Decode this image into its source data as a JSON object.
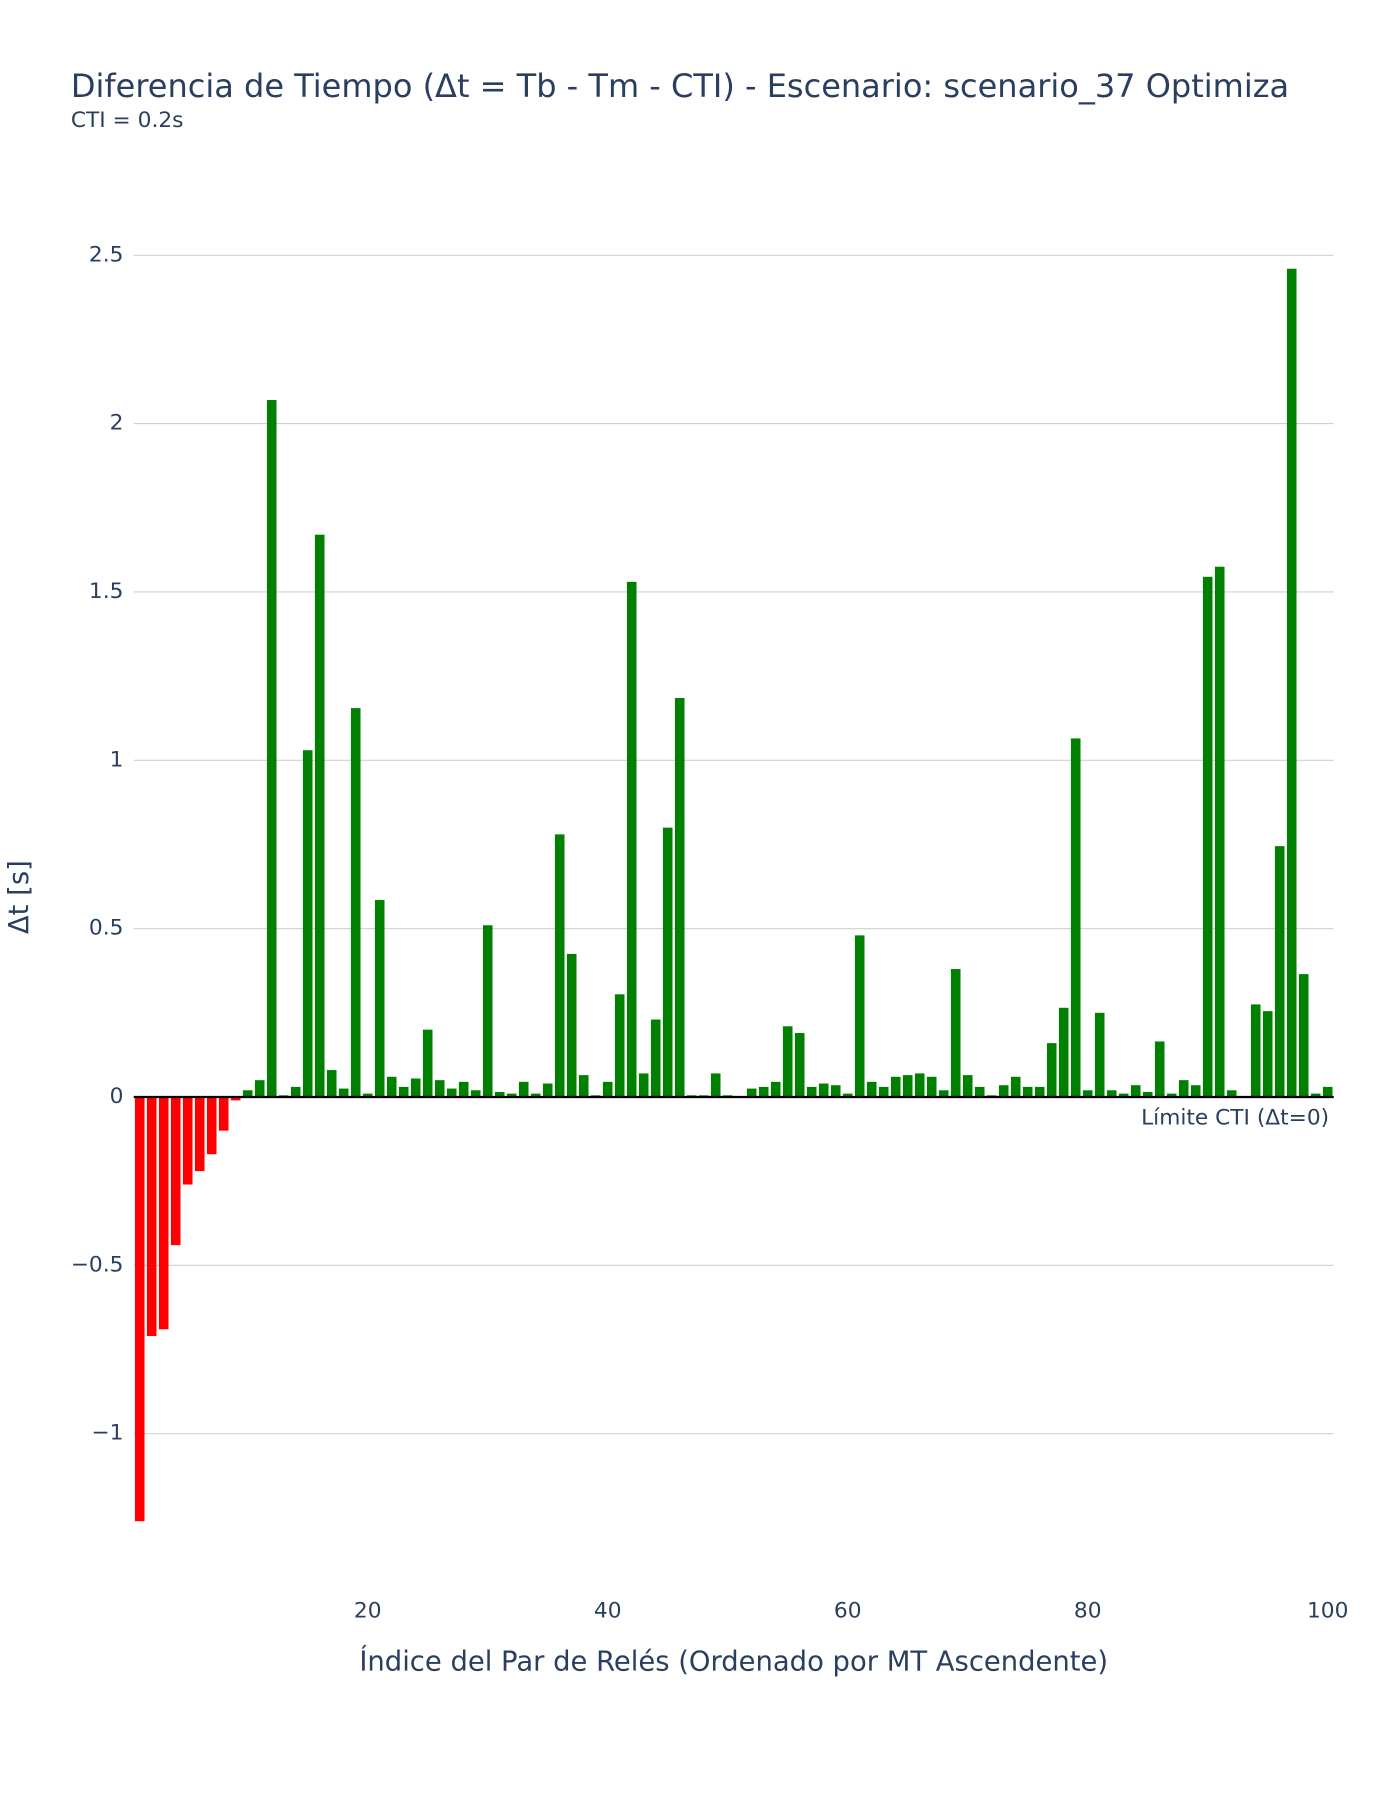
{
  "chart_data": {
    "type": "bar",
    "title": "Diferencia de Tiempo (Δt = Tb - Tm - CTI) - Escenario: scenario_37 Optimiza",
    "subtitle": "CTI = 0.2s",
    "x_label": "Índice del Par de Relés (Ordenado por MT Ascendente)",
    "y_label": "Δt [s]",
    "x": [
      1,
      2,
      3,
      4,
      5,
      6,
      7,
      8,
      9,
      10,
      11,
      12,
      13,
      14,
      15,
      16,
      17,
      18,
      19,
      20,
      21,
      22,
      23,
      24,
      25,
      26,
      27,
      28,
      29,
      30,
      31,
      32,
      33,
      34,
      35,
      36,
      37,
      38,
      39,
      40,
      41,
      42,
      43,
      44,
      45,
      46,
      47,
      48,
      49,
      50,
      51,
      52,
      53,
      54,
      55,
      56,
      57,
      58,
      59,
      60,
      61,
      62,
      63,
      64,
      65,
      66,
      67,
      68,
      69,
      70,
      71,
      72,
      73,
      74,
      75,
      76,
      77,
      78,
      79,
      80,
      81,
      82,
      83,
      84,
      85,
      86,
      87,
      88,
      89,
      90,
      91,
      92,
      93,
      94,
      95,
      96,
      97,
      98,
      99,
      100
    ],
    "values": [
      -1.26,
      -0.71,
      -0.69,
      -0.44,
      -0.26,
      -0.22,
      -0.17,
      -0.1,
      -0.01,
      0.02,
      0.05,
      2.07,
      0.005,
      0.03,
      1.03,
      1.67,
      0.08,
      0.025,
      1.155,
      0.01,
      0.585,
      0.06,
      0.03,
      0.055,
      0.2,
      0.05,
      0.025,
      0.045,
      0.02,
      0.51,
      0.015,
      0.01,
      0.045,
      0.01,
      0.04,
      0.78,
      0.425,
      0.065,
      0.005,
      0.045,
      0.305,
      1.53,
      0.07,
      0.23,
      0.8,
      1.185,
      0.005,
      0.005,
      0.07,
      0.005,
      0.002,
      0.025,
      0.03,
      0.045,
      0.21,
      0.19,
      0.03,
      0.04,
      0.035,
      0.01,
      0.48,
      0.045,
      0.03,
      0.06,
      0.065,
      0.07,
      0.06,
      0.02,
      0.38,
      0.065,
      0.03,
      0.005,
      0.035,
      0.06,
      0.03,
      0.03,
      0.16,
      0.265,
      1.065,
      0.02,
      0.25,
      0.02,
      0.01,
      0.035,
      0.015,
      0.165,
      0.01,
      0.05,
      0.035,
      1.545,
      1.575,
      0.02,
      0.003,
      0.275,
      0.255,
      0.745,
      2.46,
      0.365,
      0.01,
      0.03
    ],
    "positive_color": "#008000",
    "negative_color": "#ff0000",
    "xlim": [
      0.5,
      100.5
    ],
    "xticks": [
      20,
      40,
      60,
      80,
      100
    ],
    "ylim": [
      -1.46,
      2.62
    ],
    "yticks": [
      {
        "value": -1,
        "label": "−1"
      },
      {
        "value": -0.5,
        "label": "−0.5"
      },
      0,
      0.5,
      1,
      1.5,
      2,
      2.5
    ],
    "grid": true,
    "reference_line": {
      "value": 0,
      "label": "Límite CTI (Δt=0)"
    }
  }
}
